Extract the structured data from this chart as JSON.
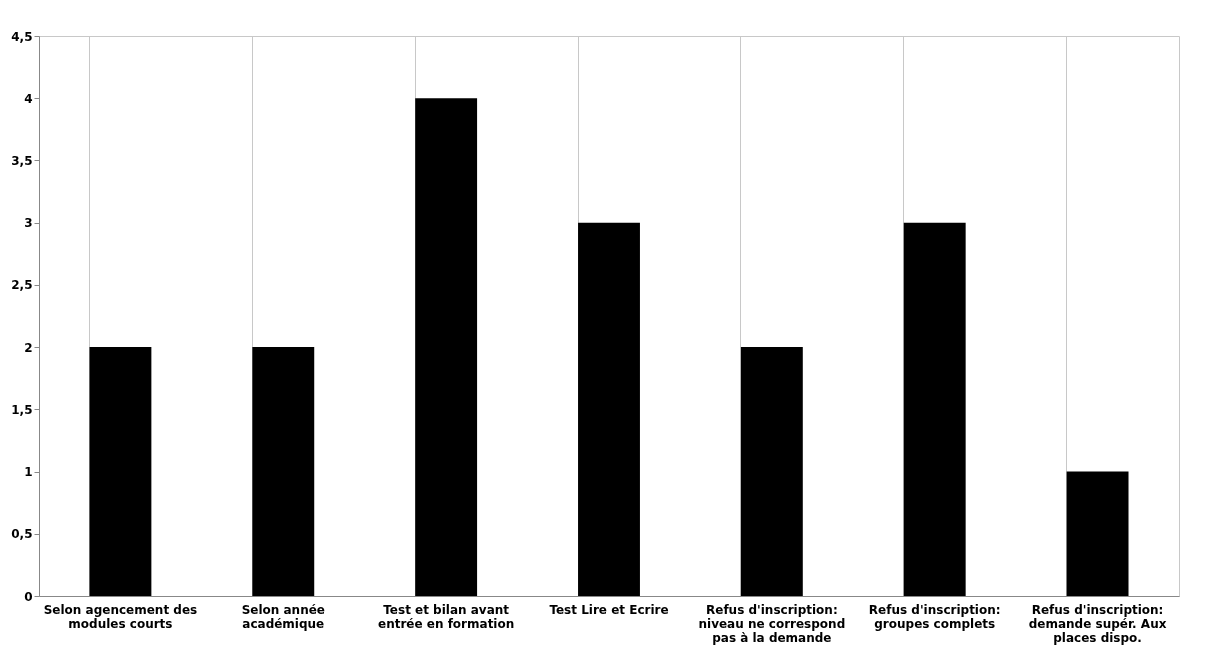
{
  "chart_data": {
    "type": "bar",
    "categories": [
      "Selon agencement des modules courts",
      "Selon année académique",
      "Test et bilan avant entrée en formation",
      "Test Lire et Ecrire",
      "Refus d'inscription: niveau ne correspond pas à la demande",
      "Refus d'inscription: groupes complets",
      "Refus d'inscription: demande supér. Aux places dispo."
    ],
    "values": [
      2,
      2,
      4,
      3,
      2,
      3,
      1
    ],
    "color": "#000000",
    "ylim": [
      0,
      4.5
    ],
    "yticks": [
      0,
      {
        "value": 0.5,
        "label": "0,5"
      },
      1,
      {
        "value": 1.5,
        "label": "1,5"
      },
      2,
      {
        "value": 2.5,
        "label": "2,5"
      },
      3,
      {
        "value": 3.5,
        "label": "3,5"
      },
      4,
      {
        "value": 4.5,
        "label": "4,5"
      }
    ],
    "grid": "x"
  }
}
